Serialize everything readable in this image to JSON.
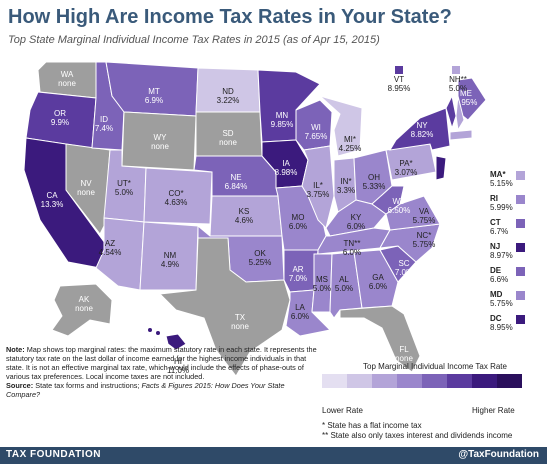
{
  "title": "How High Are Income Tax Rates in Your State?",
  "subtitle": "Top State Marginal  Individual Income Tax Rates in 2015 (as of Apr 15, 2015)",
  "colors": {
    "none": "#9e9e9e",
    "c1": "#cfc6e6",
    "c2": "#b3a4d8",
    "c3": "#9a86cc",
    "c4": "#7c63b8",
    "c5": "#5b3b9f",
    "c6": "#3b1a7d"
  },
  "states": [
    {
      "code": "WA",
      "rate": "none"
    },
    {
      "code": "OR",
      "rate": "9.9%"
    },
    {
      "code": "CA",
      "rate": "13.3%"
    },
    {
      "code": "NV",
      "rate": "none"
    },
    {
      "code": "ID",
      "rate": "7.4%"
    },
    {
      "code": "MT",
      "rate": "6.9%"
    },
    {
      "code": "WY",
      "rate": "none"
    },
    {
      "code": "UT*",
      "rate": "5.0%"
    },
    {
      "code": "AZ",
      "rate": "4.54%"
    },
    {
      "code": "CO*",
      "rate": "4.63%"
    },
    {
      "code": "NM",
      "rate": "4.9%"
    },
    {
      "code": "ND",
      "rate": "3.22%"
    },
    {
      "code": "SD",
      "rate": "none"
    },
    {
      "code": "NE",
      "rate": "6.84%"
    },
    {
      "code": "KS",
      "rate": "4.6%"
    },
    {
      "code": "OK",
      "rate": "5.25%"
    },
    {
      "code": "TX",
      "rate": "none"
    },
    {
      "code": "MN",
      "rate": "9.85%"
    },
    {
      "code": "IA",
      "rate": "8.98%"
    },
    {
      "code": "MO",
      "rate": "6.0%"
    },
    {
      "code": "AR",
      "rate": "7.0%"
    },
    {
      "code": "LA",
      "rate": "6.0%"
    },
    {
      "code": "WI",
      "rate": "7.65%"
    },
    {
      "code": "IL*",
      "rate": "3.75%"
    },
    {
      "code": "MI*",
      "rate": "4.25%"
    },
    {
      "code": "IN*",
      "rate": "3.3%"
    },
    {
      "code": "OH",
      "rate": "5.33%"
    },
    {
      "code": "KY",
      "rate": "6.0%"
    },
    {
      "code": "TN**",
      "rate": "6.0%"
    },
    {
      "code": "MS",
      "rate": "5.0%"
    },
    {
      "code": "AL",
      "rate": "5.0%"
    },
    {
      "code": "GA",
      "rate": "6.0%"
    },
    {
      "code": "FL",
      "rate": "none"
    },
    {
      "code": "SC",
      "rate": "7.0%"
    },
    {
      "code": "NC*",
      "rate": "5.75%"
    },
    {
      "code": "VA",
      "rate": "5.75%"
    },
    {
      "code": "WV",
      "rate": "6.50%"
    },
    {
      "code": "PA*",
      "rate": "3.07%"
    },
    {
      "code": "NY",
      "rate": "8.82%"
    },
    {
      "code": "ME",
      "rate": "7.95%"
    },
    {
      "code": "AK",
      "rate": "none"
    },
    {
      "code": "HI",
      "rate": "11.0%"
    },
    {
      "code": "VT",
      "rate": "8.95%"
    },
    {
      "code": "NH**",
      "rate": "5.0%"
    }
  ],
  "side_states": [
    {
      "code": "MA*",
      "rate": "5.15%"
    },
    {
      "code": "RI",
      "rate": "5.99%"
    },
    {
      "code": "CT",
      "rate": "6.7%"
    },
    {
      "code": "NJ",
      "rate": "8.97%"
    },
    {
      "code": "DE",
      "rate": "6.6%"
    },
    {
      "code": "MD",
      "rate": "5.75%"
    },
    {
      "code": "DC",
      "rate": "8.95%"
    }
  ],
  "note": {
    "label": "Note:",
    "text": "Map shows top marginal rates: the maximum statutory rate in each state. It represents the statutory tax rate on the last dollar of income earned for the highest income individuals in that state. It is not an effective marginal tax rate, which would include the effects of phase-outs of various tax preferences. Local income taxes are not included.",
    "source_label": "Source:",
    "source_text": "State tax forms and instructions; ",
    "source_italic": "Facts & Figures 2015: How Does Your State Compare?"
  },
  "legend": {
    "title": "Top Marginal Individual Income Tax Rate",
    "low": "Lower Rate",
    "high": "Higher Rate"
  },
  "footnotes": [
    "* State has a flat income tax",
    "** State also only taxes interest and dividends income"
  ],
  "footer": {
    "left": "TAX FOUNDATION",
    "right": "@TaxFoundation"
  }
}
